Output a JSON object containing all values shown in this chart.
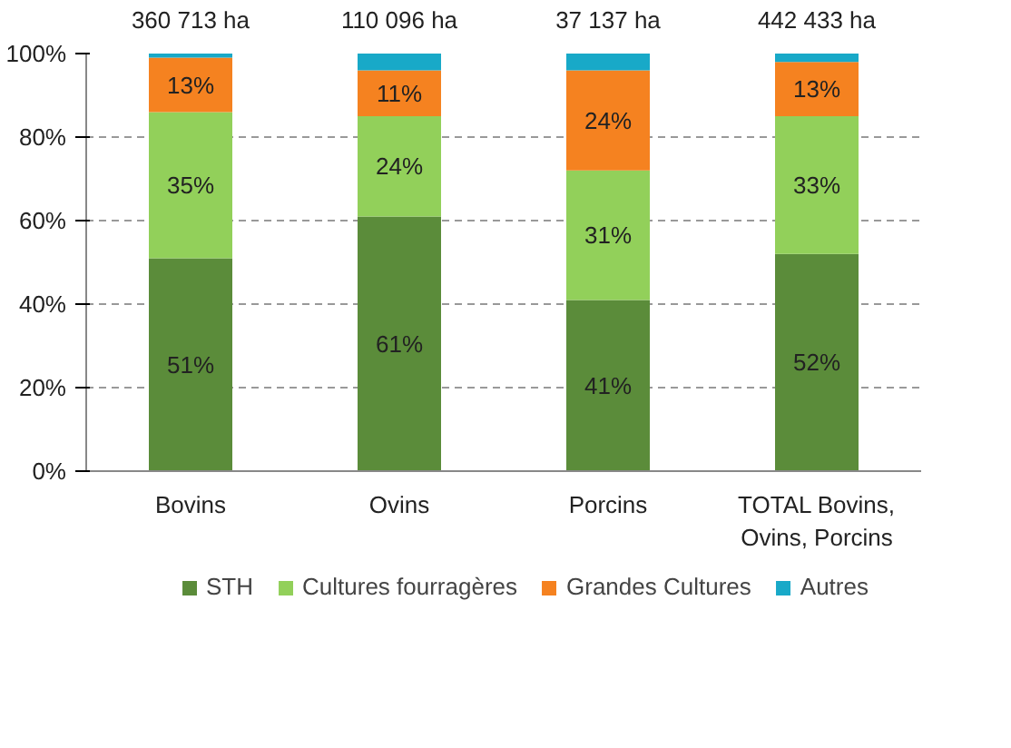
{
  "chart_data": {
    "type": "bar",
    "stacked": true,
    "categories": [
      "Bovins",
      "Ovins",
      "Porcins",
      "TOTAL Bovins, Ovins, Porcins"
    ],
    "series": [
      {
        "name": "STH",
        "color": "#5b8c3a",
        "values": [
          51,
          61,
          41,
          52
        ],
        "value_labels": [
          "51%",
          "61%",
          "41%",
          "52%"
        ]
      },
      {
        "name": "Cultures fourragères",
        "color": "#92d05a",
        "values": [
          35,
          24,
          31,
          33
        ],
        "value_labels": [
          "35%",
          "24%",
          "31%",
          "33%"
        ]
      },
      {
        "name": "Grandes Cultures",
        "color": "#f58220",
        "values": [
          13,
          11,
          24,
          13
        ],
        "value_labels": [
          "13%",
          "11%",
          "24%",
          "13%"
        ]
      },
      {
        "name": "Autres",
        "color": "#18a9c8",
        "values": [
          1,
          4,
          4,
          2
        ],
        "value_labels": [
          null,
          null,
          null,
          null
        ]
      }
    ],
    "annotations": [
      "360 713 ha",
      "110 096 ha",
      "37 137 ha",
      "442 433 ha"
    ],
    "ylim": [
      0,
      100
    ],
    "yticks": [
      {
        "value": 0,
        "label": "0%"
      },
      {
        "value": 20,
        "label": "20%"
      },
      {
        "value": 40,
        "label": "40%"
      },
      {
        "value": 60,
        "label": "60%"
      },
      {
        "value": 80,
        "label": "80%"
      },
      {
        "value": 100,
        "label": "100%"
      }
    ],
    "grid": "y",
    "legend": "bottom"
  }
}
